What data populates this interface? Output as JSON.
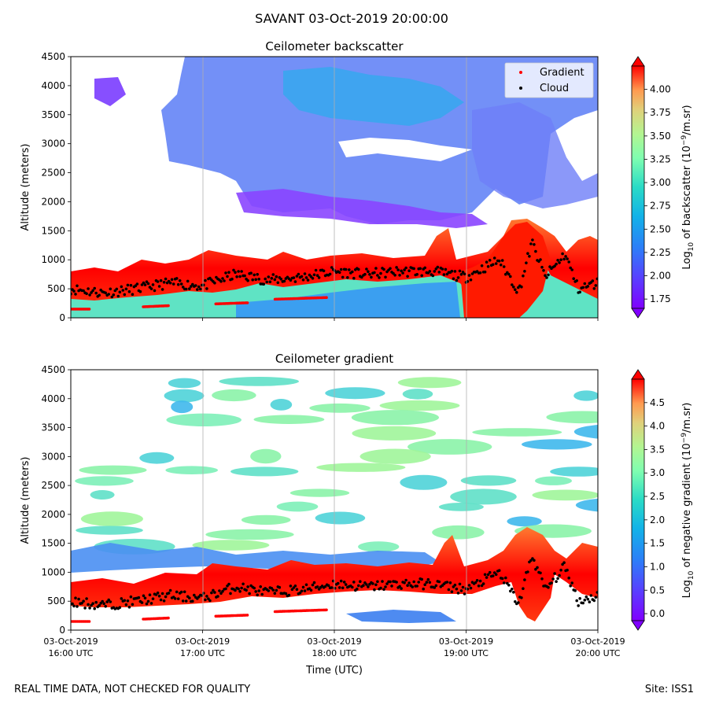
{
  "suptitle": "SAVANT 03-Oct-2019 20:00:00",
  "footer": {
    "left": "REAL TIME DATA, NOT CHECKED FOR QUALITY",
    "right": "Site: ISS1"
  },
  "chart_data": [
    {
      "type": "heatmap",
      "title": "Ceilometer backscatter",
      "ylabel": "Altitude (meters)",
      "xlabel": "",
      "yticks": [
        0,
        500,
        1000,
        1500,
        2000,
        2500,
        3000,
        3500,
        4000,
        4500
      ],
      "ylim": [
        0,
        4500
      ],
      "xlim_hours": [
        16,
        20
      ],
      "x_gridlines_hours": [
        17,
        18,
        19
      ],
      "legend": {
        "location": "top-right",
        "entries": [
          {
            "label": "Gradient",
            "color": "#ff0000"
          },
          {
            "label": "Cloud",
            "color": "#000000"
          }
        ]
      },
      "colorbar": {
        "label_prefix": "Log",
        "label_sub": "10",
        "label_mid": " of backscatter (10",
        "label_sup": "−9",
        "label_end": "/m.sr)",
        "ticks": [
          "1.75",
          "2.00",
          "2.25",
          "2.50",
          "2.75",
          "3.00",
          "3.25",
          "3.50",
          "3.75",
          "4.00"
        ],
        "range": [
          1.65,
          4.25
        ]
      },
      "cloud_base_series": {
        "hours": [
          16.0,
          16.25,
          16.5,
          16.75,
          17.0,
          17.25,
          17.5,
          17.75,
          18.0,
          18.25,
          18.5,
          18.75,
          19.0,
          19.25,
          19.4,
          19.5,
          19.6,
          19.75,
          19.85,
          20.0
        ],
        "altitude_m": [
          500,
          430,
          500,
          600,
          550,
          750,
          650,
          700,
          800,
          750,
          800,
          800,
          700,
          1000,
          450,
          1300,
          700,
          1100,
          500,
          600
        ]
      },
      "gradient_layer_series": {
        "segments": [
          {
            "hours": [
              16.0,
              16.15
            ],
            "altitude_m": [
              150,
              150
            ]
          },
          {
            "hours": [
              16.55,
              16.75
            ],
            "altitude_m": [
              190,
              210
            ]
          },
          {
            "hours": [
              17.1,
              17.35
            ],
            "altitude_m": [
              240,
              260
            ]
          },
          {
            "hours": [
              17.55,
              17.95
            ],
            "altitude_m": [
              320,
              350
            ]
          }
        ]
      }
    },
    {
      "type": "heatmap",
      "title": "Ceilometer gradient",
      "ylabel": "Altitude (meters)",
      "xlabel": "Time (UTC)",
      "yticks": [
        0,
        500,
        1000,
        1500,
        2000,
        2500,
        3000,
        3500,
        4000,
        4500
      ],
      "ylim": [
        0,
        4500
      ],
      "xlim_hours": [
        16,
        20
      ],
      "x_gridlines_hours": [
        17,
        18,
        19
      ],
      "xticks": [
        {
          "hour": 16,
          "date": "03-Oct-2019",
          "time": "16:00 UTC"
        },
        {
          "hour": 17,
          "date": "03-Oct-2019",
          "time": "17:00 UTC"
        },
        {
          "hour": 18,
          "date": "03-Oct-2019",
          "time": "18:00 UTC"
        },
        {
          "hour": 19,
          "date": "03-Oct-2019",
          "time": "19:00 UTC"
        },
        {
          "hour": 20,
          "date": "03-Oct-2019",
          "time": "20:00 UTC"
        }
      ],
      "colorbar": {
        "label_prefix": "Log",
        "label_sub": "10",
        "label_mid": " of negative gradient (10",
        "label_sup": "−9",
        "label_end": "/m.sr)",
        "ticks": [
          "0.0",
          "0.5",
          "1.0",
          "1.5",
          "2.0",
          "2.5",
          "3.0",
          "3.5",
          "4.0",
          "4.5"
        ],
        "range": [
          -0.15,
          5.0
        ]
      },
      "cloud_base_series": {
        "hours": [
          16.0,
          16.25,
          16.5,
          16.75,
          17.0,
          17.25,
          17.5,
          17.75,
          18.0,
          18.25,
          18.5,
          18.75,
          19.0,
          19.25,
          19.4,
          19.5,
          19.6,
          19.75,
          19.85,
          20.0
        ],
        "altitude_m": [
          500,
          430,
          500,
          600,
          550,
          750,
          650,
          700,
          800,
          750,
          800,
          800,
          700,
          1000,
          450,
          1300,
          700,
          1100,
          500,
          600
        ]
      },
      "gradient_layer_series": {
        "segments": [
          {
            "hours": [
              16.0,
              16.15
            ],
            "altitude_m": [
              150,
              150
            ]
          },
          {
            "hours": [
              16.55,
              16.75
            ],
            "altitude_m": [
              190,
              210
            ]
          },
          {
            "hours": [
              17.1,
              17.35
            ],
            "altitude_m": [
              240,
              260
            ]
          },
          {
            "hours": [
              17.55,
              17.95
            ],
            "altitude_m": [
              320,
              350
            ]
          }
        ]
      }
    }
  ]
}
